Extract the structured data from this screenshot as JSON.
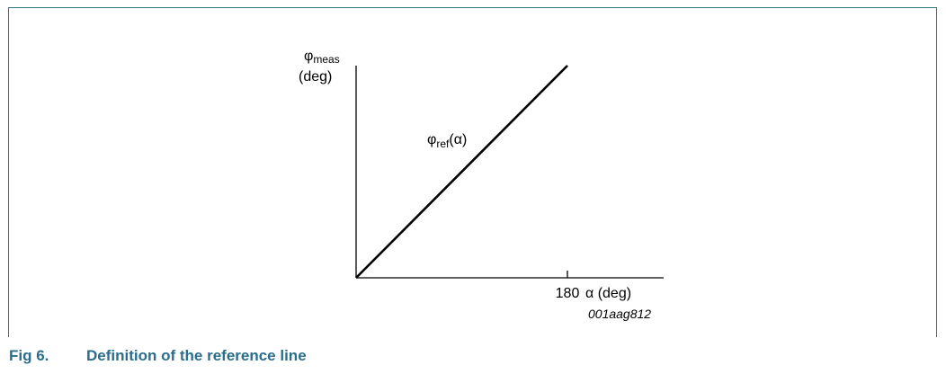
{
  "figure": {
    "number": "Fig 6.",
    "title": "Definition of the reference line",
    "code": "001aag812"
  },
  "colors": {
    "frame": "#2b7a7f",
    "caption": "#2b6e8c",
    "ink": "#000000"
  },
  "chart_data": {
    "type": "line",
    "y_label_symbol": "φ",
    "y_label_sub": "meas",
    "y_label_unit": "(deg)",
    "x_label": "α (deg)",
    "x_ticks": [
      {
        "value": 180,
        "label": "180"
      }
    ],
    "series": [
      {
        "label_symbol": "φ",
        "label_sub": "ref",
        "label_arg": "(α)",
        "x": [
          0,
          180
        ],
        "y": [
          0,
          180
        ]
      }
    ]
  }
}
